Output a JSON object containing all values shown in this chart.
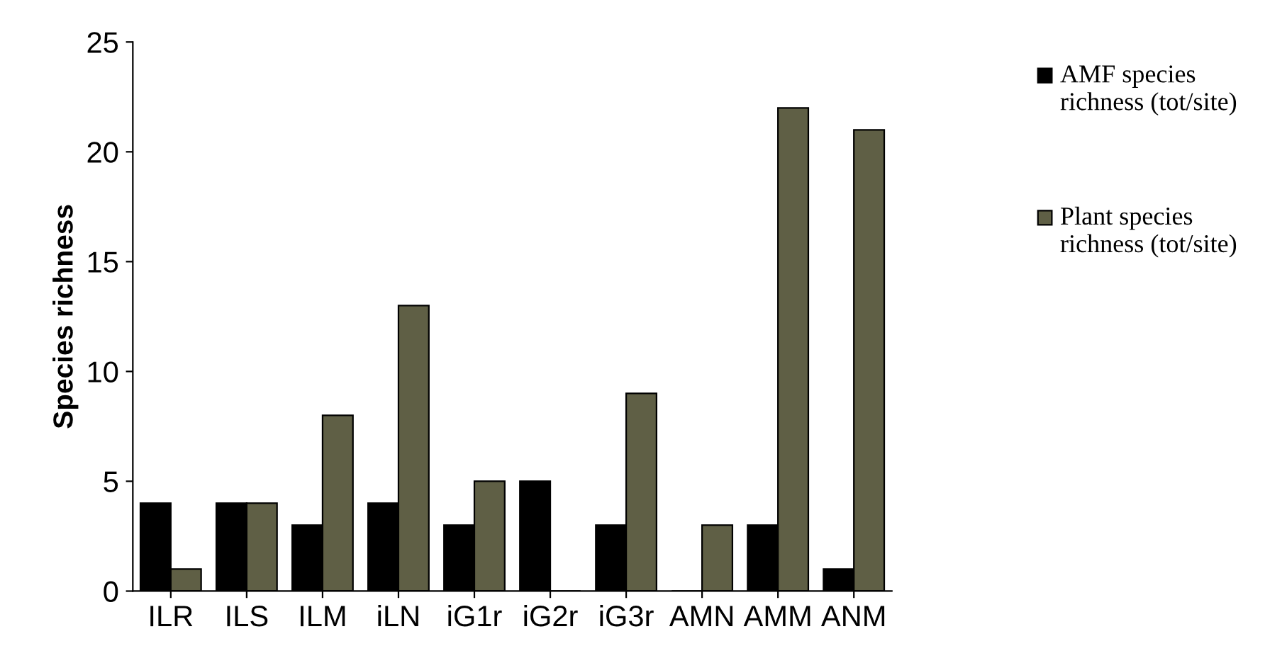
{
  "chart_data": {
    "type": "bar",
    "ylabel": "Species richness",
    "categories": [
      "ILR",
      "ILS",
      "ILM",
      "iLN",
      "iG1r",
      "iG2r",
      "iG3r",
      "AMN",
      "AMM",
      "ANM"
    ],
    "series": [
      {
        "name": "AMF species richness (tot/site)",
        "color": "#000000",
        "values": [
          4,
          4,
          3,
          4,
          3,
          5,
          3,
          0,
          3,
          1
        ]
      },
      {
        "name": "Plant species richness (tot/site)",
        "color": "#5f5f45",
        "values": [
          1,
          4,
          8,
          13,
          5,
          0,
          9,
          3,
          22,
          21
        ]
      }
    ],
    "ylim": [
      0,
      25
    ],
    "yticks": [
      0,
      5,
      10,
      15,
      20,
      25
    ],
    "grid": false,
    "legend": "right"
  }
}
